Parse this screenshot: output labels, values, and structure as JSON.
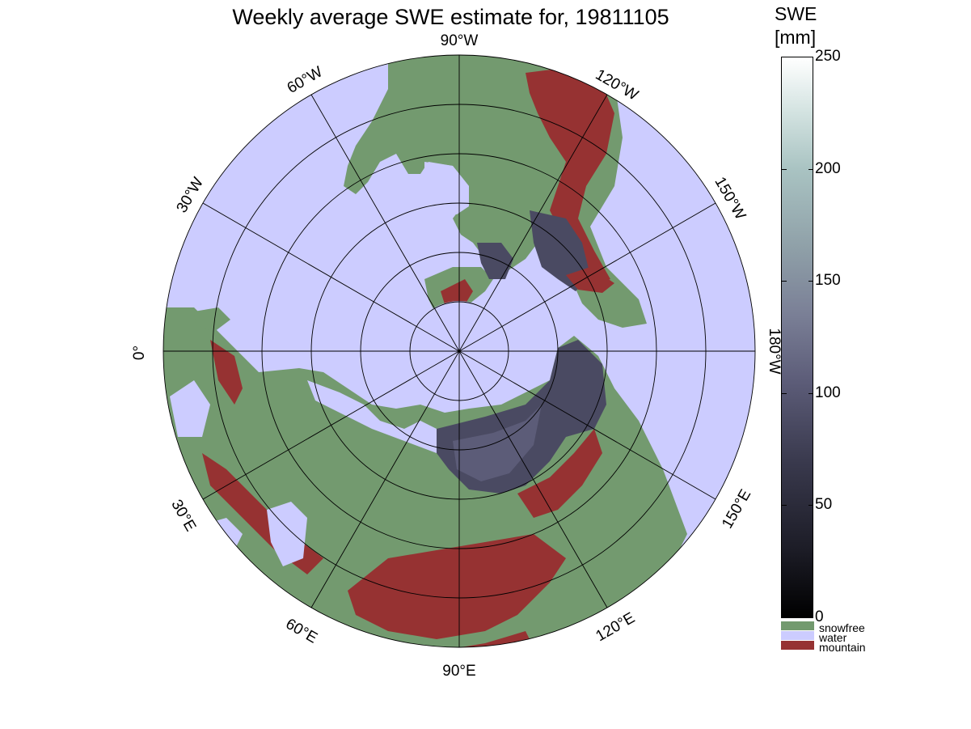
{
  "title": "Weekly average SWE estimate for, 19811105",
  "colorbar": {
    "title_line1": "SWE",
    "title_line2": "[mm]",
    "ticks": [
      {
        "label": "250",
        "value": 250
      },
      {
        "label": "200",
        "value": 200
      },
      {
        "label": "150",
        "value": 150
      },
      {
        "label": "100",
        "value": 100
      },
      {
        "label": "50",
        "value": 50
      },
      {
        "label": "0",
        "value": 0
      }
    ],
    "range": [
      0,
      250
    ],
    "categories": [
      {
        "label": "snowfree",
        "color": "#739a6f"
      },
      {
        "label": "water",
        "color": "#ccccff"
      },
      {
        "label": "mountain",
        "color": "#963232"
      }
    ]
  },
  "map": {
    "projection": "north-polar-stereographic",
    "meridian_labels": [
      "90°W",
      "120°W",
      "150°W",
      "180°W",
      "150°E",
      "120°E",
      "90°E",
      "60°E",
      "30°E",
      "0°",
      "30°W",
      "60°W"
    ],
    "colors": {
      "water": "#ccccff",
      "snowfree": "#739a6f",
      "mountain": "#963232",
      "snow_shallow": "#1c1c26",
      "snow_medium": "#3a3a4e",
      "snow_deep": "#5c5c78"
    }
  }
}
